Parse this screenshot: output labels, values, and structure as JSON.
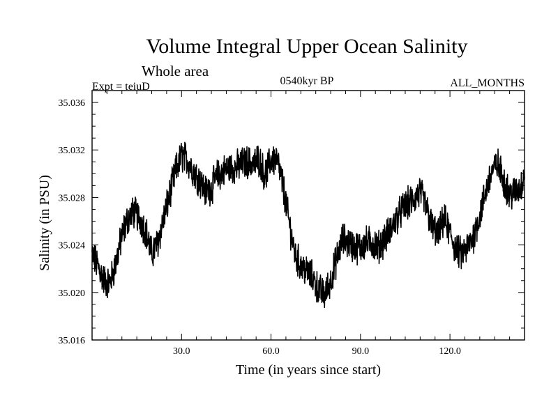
{
  "chart_data": {
    "type": "line",
    "title": "Volume Integral Upper Ocean Salinity",
    "subtitle": "Whole area",
    "experiment": "Expt = teiuD",
    "period": "0540kyr BP",
    "months": "ALL_MONTHS",
    "xlabel": "Time (in years since start)",
    "ylabel": "Salinity (in PSU)",
    "xlim": [
      0,
      145
    ],
    "ylim": [
      35.016,
      35.037
    ],
    "x_ticks": [
      30,
      60,
      90,
      120
    ],
    "x_tick_labels": [
      "30.0",
      "60.0",
      "90.0",
      "120.0"
    ],
    "y_ticks": [
      35.016,
      35.02,
      35.024,
      35.028,
      35.032,
      35.036
    ],
    "y_tick_labels": [
      "35.016",
      "35.020",
      "35.024",
      "35.028",
      "35.032",
      "35.036"
    ],
    "series": [
      {
        "name": "Salinity",
        "color": "#000000",
        "x": [
          0,
          2,
          4,
          6,
          8,
          10,
          12,
          14,
          16,
          18,
          20,
          22,
          24,
          26,
          28,
          30,
          32,
          34,
          36,
          38,
          40,
          42,
          44,
          46,
          48,
          50,
          52,
          54,
          56,
          58,
          60,
          62,
          64,
          66,
          68,
          70,
          72,
          74,
          76,
          78,
          80,
          82,
          84,
          86,
          88,
          90,
          92,
          94,
          96,
          98,
          100,
          102,
          104,
          106,
          108,
          110,
          112,
          114,
          116,
          118,
          120,
          122,
          124,
          126,
          128,
          130,
          132,
          134,
          136,
          138,
          140,
          142,
          144,
          145
        ],
        "values": [
          35.0232,
          35.0222,
          35.021,
          35.0208,
          35.0225,
          35.0248,
          35.0262,
          35.0268,
          35.0262,
          35.0252,
          35.0232,
          35.0242,
          35.0262,
          35.0282,
          35.0302,
          35.0315,
          35.0312,
          35.0302,
          35.0295,
          35.0285,
          35.0288,
          35.0298,
          35.0302,
          35.0305,
          35.0305,
          35.0308,
          35.031,
          35.0308,
          35.0312,
          35.0298,
          35.0312,
          35.0312,
          35.029,
          35.026,
          35.0232,
          35.0222,
          35.0218,
          35.0212,
          35.0202,
          35.0198,
          35.021,
          35.0228,
          35.0245,
          35.0242,
          35.0238,
          35.0238,
          35.0242,
          35.0242,
          35.0238,
          35.0245,
          35.0252,
          35.0262,
          35.027,
          35.0275,
          35.0278,
          35.0285,
          35.0272,
          35.0255,
          35.0248,
          35.0262,
          35.025,
          35.0236,
          35.0232,
          35.0238,
          35.0248,
          35.0265,
          35.0285,
          35.0302,
          35.0308,
          35.0295,
          35.0282,
          35.0285,
          35.029,
          35.0302
        ]
      }
    ]
  }
}
